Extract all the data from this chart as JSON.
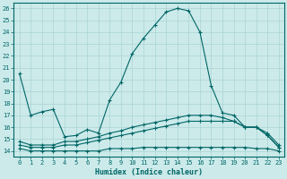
{
  "xlabel": "Humidex (Indice chaleur)",
  "ylabel": "",
  "xlim": [
    -0.5,
    23.5
  ],
  "ylim": [
    13.5,
    26.5
  ],
  "yticks": [
    14,
    15,
    16,
    17,
    18,
    19,
    20,
    21,
    22,
    23,
    24,
    25,
    26
  ],
  "xticks": [
    0,
    1,
    2,
    3,
    4,
    5,
    6,
    7,
    8,
    9,
    10,
    11,
    12,
    13,
    14,
    15,
    16,
    17,
    18,
    19,
    20,
    21,
    22,
    23
  ],
  "background_color": "#cceaea",
  "line_color": "#006666",
  "grid_color": "#aad4d4",
  "lines": [
    {
      "x": [
        0,
        1,
        2,
        3,
        4,
        5,
        6,
        7,
        8,
        9,
        10,
        11,
        12,
        13,
        14,
        15,
        16,
        17,
        18,
        19,
        20,
        21,
        22,
        23
      ],
      "y": [
        20.5,
        17.0,
        17.3,
        17.5,
        15.2,
        15.3,
        15.8,
        15.5,
        18.3,
        19.8,
        22.2,
        23.5,
        24.6,
        25.7,
        26.0,
        25.8,
        24.0,
        19.5,
        17.2,
        17.0,
        16.0,
        16.0,
        15.3,
        14.3
      ]
    },
    {
      "x": [
        0,
        1,
        2,
        3,
        4,
        5,
        6,
        7,
        8,
        9,
        10,
        11,
        12,
        13,
        14,
        15,
        16,
        17,
        18,
        19,
        20,
        21,
        22,
        23
      ],
      "y": [
        14.8,
        14.5,
        14.5,
        14.5,
        14.8,
        14.8,
        15.0,
        15.2,
        15.5,
        15.7,
        16.0,
        16.2,
        16.4,
        16.6,
        16.8,
        17.0,
        17.0,
        17.0,
        16.8,
        16.5,
        16.0,
        16.0,
        15.5,
        14.5
      ]
    },
    {
      "x": [
        0,
        1,
        2,
        3,
        4,
        5,
        6,
        7,
        8,
        9,
        10,
        11,
        12,
        13,
        14,
        15,
        16,
        17,
        18,
        19,
        20,
        21,
        22,
        23
      ],
      "y": [
        14.5,
        14.3,
        14.3,
        14.3,
        14.5,
        14.5,
        14.7,
        14.9,
        15.1,
        15.3,
        15.5,
        15.7,
        15.9,
        16.1,
        16.3,
        16.5,
        16.5,
        16.5,
        16.5,
        16.5,
        16.0,
        16.0,
        15.3,
        14.3
      ]
    },
    {
      "x": [
        0,
        1,
        2,
        3,
        4,
        5,
        6,
        7,
        8,
        9,
        10,
        11,
        12,
        13,
        14,
        15,
        16,
        17,
        18,
        19,
        20,
        21,
        22,
        23
      ],
      "y": [
        14.2,
        14.0,
        14.0,
        14.0,
        14.0,
        14.0,
        14.0,
        14.0,
        14.2,
        14.2,
        14.2,
        14.3,
        14.3,
        14.3,
        14.3,
        14.3,
        14.3,
        14.3,
        14.3,
        14.3,
        14.3,
        14.2,
        14.2,
        14.0
      ]
    }
  ]
}
